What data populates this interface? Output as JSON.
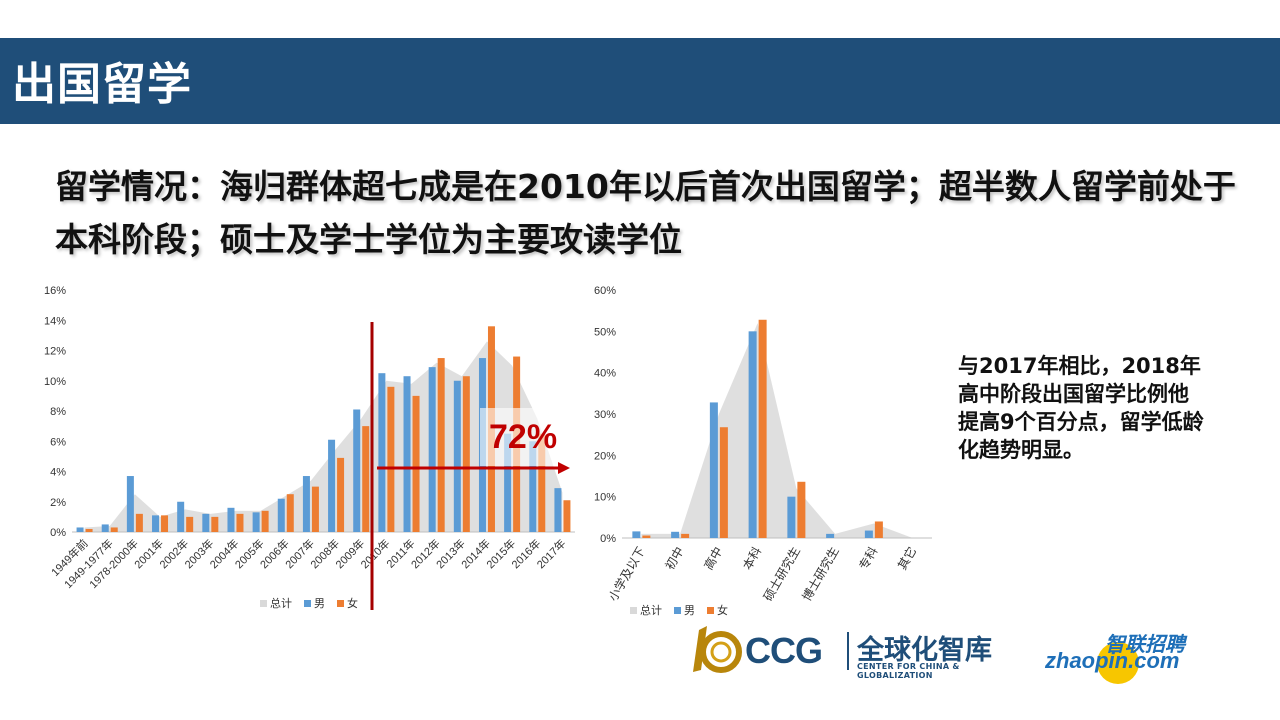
{
  "header": {
    "title": "出国留学"
  },
  "headline": {
    "text": "留学情况：海归群体超七成是在2010年以后首次出国留学；超半数人留学前处于本科阶段；硕士及学士学位为主要攻读学位"
  },
  "note": {
    "text": "与2017年相比，2018年高中阶段出国留学比例他提高9个百分点，留学低龄化趋势明显。"
  },
  "annotation": {
    "label": "72%",
    "color": "#c00000"
  },
  "colors": {
    "header": "#1f4e79",
    "total": "#d9d9d9",
    "male": "#5b9bd5",
    "female": "#ed7d31"
  },
  "logos": {
    "ccg_name": "CCG",
    "ccg_cn": "全球化智库",
    "ccg_en": "CENTER FOR CHINA & GLOBALIZATION",
    "zhaopin_cn": "智联招聘",
    "zhaopin_en": "zhaopin.com"
  },
  "chart_data": [
    {
      "type": "bar",
      "categories": [
        "1949年前",
        "1949-1977年",
        "1978-2000年",
        "2001年",
        "2002年",
        "2003年",
        "2004年",
        "2005年",
        "2006年",
        "2007年",
        "2008年",
        "2009年",
        "2010年",
        "2011年",
        "2012年",
        "2013年",
        "2014年",
        "2015年",
        "2016年",
        "2017年"
      ],
      "series": [
        {
          "name": "总计",
          "kind": "area",
          "values": [
            0.3,
            0.4,
            2.5,
            1.0,
            1.5,
            1.2,
            1.4,
            1.4,
            2.4,
            3.4,
            5.5,
            7.5,
            10.0,
            9.8,
            11.2,
            10.3,
            12.6,
            11.0,
            7.5,
            2.6
          ]
        },
        {
          "name": "男",
          "values": [
            0.3,
            0.5,
            3.7,
            1.1,
            2.0,
            1.2,
            1.6,
            1.3,
            2.2,
            3.7,
            6.1,
            8.1,
            10.5,
            10.3,
            10.9,
            10.0,
            11.5,
            6.5,
            6.0,
            2.9
          ]
        },
        {
          "name": "女",
          "values": [
            0.2,
            0.3,
            1.2,
            1.1,
            1.0,
            1.0,
            1.2,
            1.4,
            2.5,
            3.0,
            4.9,
            7.0,
            9.6,
            9.0,
            11.5,
            10.3,
            13.6,
            11.6,
            6.5,
            2.1
          ]
        }
      ],
      "yticks": [
        "0%",
        "2%",
        "4%",
        "6%",
        "8%",
        "10%",
        "12%",
        "14%",
        "16%"
      ],
      "ylim": [
        0,
        16
      ],
      "legend": [
        "总计",
        "男",
        "女"
      ],
      "legend_position": "bottom"
    },
    {
      "type": "bar",
      "categories": [
        "小学及以下",
        "初中",
        "高中",
        "本科",
        "硕士研究生",
        "博士研究生",
        "专科",
        "其它"
      ],
      "series": [
        {
          "name": "总计",
          "kind": "area",
          "values": [
            1.0,
            1.0,
            30.0,
            52.0,
            12.0,
            1.0,
            3.5,
            0.0
          ]
        },
        {
          "name": "男",
          "values": [
            1.6,
            1.5,
            32.8,
            50.0,
            10.0,
            1.0,
            1.8,
            0.0
          ]
        },
        {
          "name": "女",
          "values": [
            0.6,
            1.0,
            26.8,
            52.8,
            13.6,
            0.0,
            4.0,
            0.0
          ]
        }
      ],
      "yticks": [
        "0%",
        "10%",
        "20%",
        "30%",
        "40%",
        "50%",
        "60%"
      ],
      "ylim": [
        0,
        60
      ],
      "legend": [
        "总计",
        "男",
        "女"
      ],
      "legend_position": "bottom"
    }
  ]
}
